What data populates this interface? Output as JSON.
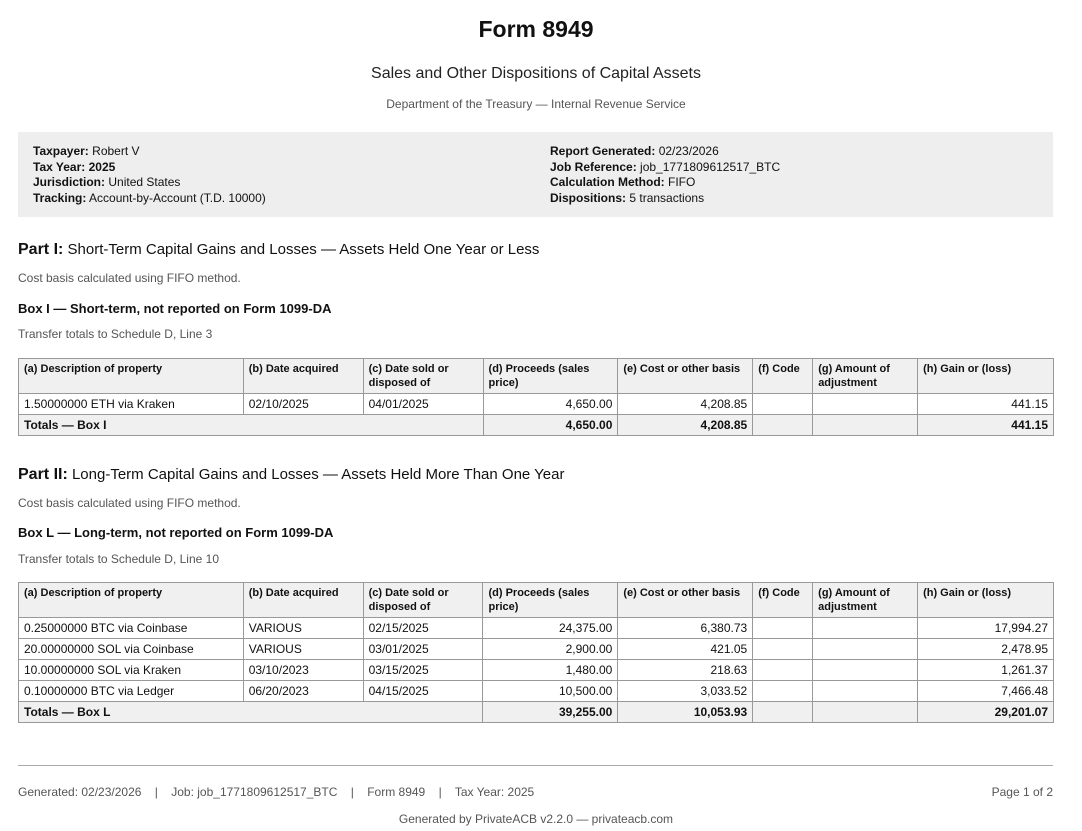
{
  "header": {
    "title": "Form 8949",
    "subtitle": "Sales and Other Dispositions of Capital Assets",
    "agency": "Department of the Treasury — Internal Revenue Service"
  },
  "info": {
    "taxpayer_label": "Taxpayer:",
    "taxpayer": "Robert V",
    "tax_year_label": "Tax Year:",
    "tax_year": "2025",
    "jurisdiction_label": "Jurisdiction:",
    "jurisdiction": "United States",
    "tracking_label": "Tracking:",
    "tracking": "Account-by-Account (T.D. 10000)",
    "report_generated_label": "Report Generated:",
    "report_generated": "02/23/2026",
    "job_reference_label": "Job Reference:",
    "job_reference": "job_1771809612517_BTC",
    "calc_method_label": "Calculation Method:",
    "calc_method": "FIFO",
    "dispositions_label": "Dispositions:",
    "dispositions": "5 transactions"
  },
  "columns": [
    "(a) Description of property",
    "(b) Date acquired",
    "(c) Date sold or disposed of",
    "(d) Proceeds (sales price)",
    "(e) Cost or other basis",
    "(f) Code",
    "(g) Amount of adjustment",
    "(h) Gain or (loss)"
  ],
  "part1": {
    "label": "Part I:",
    "title": "Short-Term Capital Gains and Losses — Assets Held One Year or Less",
    "method_note": "Cost basis calculated using FIFO method.",
    "box_title": "Box I — Short-term, not reported on Form 1099-DA",
    "transfer_note": "Transfer totals to Schedule D, Line 3",
    "rows": [
      [
        "1.50000000 ETH via Kraken",
        "02/10/2025",
        "04/01/2025",
        "4,650.00",
        "4,208.85",
        "",
        "",
        "441.15"
      ]
    ],
    "totals": {
      "label": "Totals — Box I",
      "proceeds": "4,650.00",
      "cost": "4,208.85",
      "gain": "441.15"
    }
  },
  "part2": {
    "label": "Part II:",
    "title": "Long-Term Capital Gains and Losses — Assets Held More Than One Year",
    "method_note": "Cost basis calculated using FIFO method.",
    "box_title": "Box L — Long-term, not reported on Form 1099-DA",
    "transfer_note": "Transfer totals to Schedule D, Line 10",
    "rows": [
      [
        "0.25000000 BTC via Coinbase",
        "VARIOUS",
        "02/15/2025",
        "24,375.00",
        "6,380.73",
        "",
        "",
        "17,994.27"
      ],
      [
        "20.00000000 SOL via Coinbase",
        "VARIOUS",
        "03/01/2025",
        "2,900.00",
        "421.05",
        "",
        "",
        "2,478.95"
      ],
      [
        "10.00000000 SOL via Kraken",
        "03/10/2023",
        "03/15/2025",
        "1,480.00",
        "218.63",
        "",
        "",
        "1,261.37"
      ],
      [
        "0.10000000 BTC via Ledger",
        "06/20/2023",
        "04/15/2025",
        "10,500.00",
        "3,033.52",
        "",
        "",
        "7,466.48"
      ]
    ],
    "totals": {
      "label": "Totals — Box L",
      "proceeds": "39,255.00",
      "cost": "10,053.93",
      "gain": "29,201.07"
    }
  },
  "footer": {
    "generated": "Generated: 02/23/2026",
    "job": "Job: job_1771809612517_BTC",
    "form": "Form 8949",
    "tax_year": "Tax Year: 2025",
    "separator": "|",
    "page": "Page 1 of 2",
    "generated_by": "Generated by PrivateACB v2.2.0 — privateacb.com"
  }
}
